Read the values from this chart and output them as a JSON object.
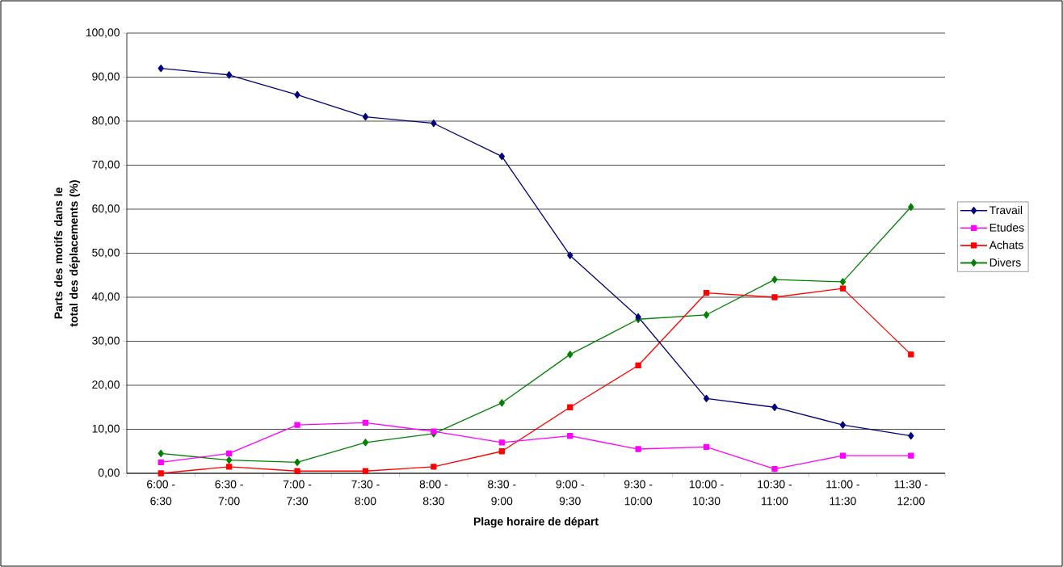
{
  "chart_data": {
    "type": "line",
    "xlabel": "Plage horaire de départ",
    "ylabel": "Parts des motifs dans le total des déplacements (%)",
    "categories": [
      "6:00 - 6:30",
      "6:30 - 7:00",
      "7:00 - 7:30",
      "7:30 - 8:00",
      "8:00 - 8:30",
      "8:30 - 9:00",
      "9:00 - 9:30",
      "9:30 - 10:00",
      "10:00 - 10:30",
      "10:30 - 11:00",
      "11:00 - 11:30",
      "11:30 - 12:00"
    ],
    "series": [
      {
        "name": "Travail",
        "color": "#000080",
        "marker": "diamond",
        "values": [
          92,
          90.5,
          86,
          81,
          79.5,
          72,
          49.5,
          35.5,
          17,
          15,
          11,
          8.5
        ]
      },
      {
        "name": "Etudes",
        "color": "#ff00ff",
        "marker": "square",
        "values": [
          2.5,
          4.5,
          11,
          11.5,
          9.5,
          7,
          8.5,
          5.5,
          6,
          1,
          4,
          4
        ]
      },
      {
        "name": "Achats",
        "color": "#ff0000",
        "marker": "square",
        "values": [
          0,
          1.5,
          0.5,
          0.5,
          1.5,
          5,
          15,
          24.5,
          41,
          40,
          42,
          27
        ]
      },
      {
        "name": "Divers",
        "color": "#008000",
        "marker": "diamond",
        "values": [
          4.5,
          3,
          2.5,
          7,
          9,
          16,
          27,
          35,
          36,
          44,
          43.5,
          60.5
        ]
      }
    ],
    "ylim": [
      0,
      100
    ],
    "yticks": [
      {
        "value": 0,
        "label": "0,00"
      },
      {
        "value": 10,
        "label": "10,00"
      },
      {
        "value": 20,
        "label": "20,00"
      },
      {
        "value": 30,
        "label": "30,00"
      },
      {
        "value": 40,
        "label": "40,00"
      },
      {
        "value": 50,
        "label": "50,00"
      },
      {
        "value": 60,
        "label": "60,00"
      },
      {
        "value": 70,
        "label": "70,00"
      },
      {
        "value": 80,
        "label": "80,00"
      },
      {
        "value": 90,
        "label": "90,00"
      },
      {
        "value": 100,
        "label": "100,00"
      }
    ],
    "grid": "y",
    "legend": "right"
  }
}
